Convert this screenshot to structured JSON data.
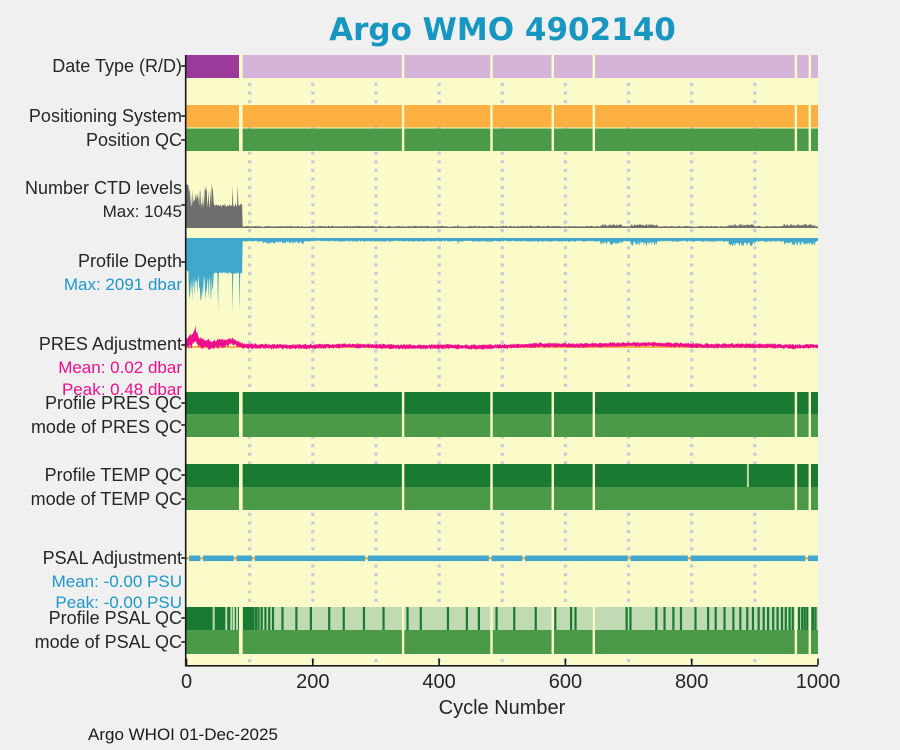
{
  "title": "Argo WMO 4902140",
  "footer": "Argo WHOI 01-Dec-2025",
  "chart_data": {
    "type": "multi-panel-status-timeline",
    "xaxis": {
      "label": "Cycle Number",
      "tick_values": [
        0,
        200,
        400,
        600,
        800,
        1000
      ],
      "min": 0,
      "max": 1000,
      "grid_every": 100
    },
    "colors": {
      "background": "#fbfbc9",
      "grid": "#c9ccd4",
      "axis": "#1a1a1a",
      "purple_dark": "#9b3a9b",
      "purple_light": "#d6b4d9",
      "orange": "#fbb041",
      "green_mid": "#4a9a48",
      "qc_dark": "#1b7a31",
      "psal_light": "#c0dbb4",
      "gray": "#6e6e6e",
      "blue": "#42a7cc",
      "magenta": "#ed0e8d",
      "zero_orange": "#f7a73f",
      "title": "#1796c0"
    },
    "panels": [
      {
        "id": "date_type",
        "label": "Date Type (R/D)",
        "type": "band",
        "segments": [
          {
            "from": 0,
            "to": 86,
            "color": "#9b3a9b"
          },
          {
            "from": 86,
            "to": 1000,
            "color": "#d6b4d9"
          }
        ],
        "gaps": [
          86,
          343,
          483,
          580,
          645,
          965,
          987
        ]
      },
      {
        "id": "positioning_system",
        "label": "Positioning System",
        "type": "band",
        "segments": [
          {
            "from": 0,
            "to": 1000,
            "color": "#fbb041"
          }
        ],
        "gaps": [
          86,
          343,
          483,
          580,
          645,
          965,
          987
        ]
      },
      {
        "id": "position_qc",
        "label": "Position QC",
        "type": "band",
        "segments": [
          {
            "from": 0,
            "to": 1000,
            "color": "#4a9a48"
          }
        ],
        "gaps": [
          86,
          343,
          483,
          580,
          645,
          965,
          987
        ]
      },
      {
        "id": "ctd_levels",
        "label": "Number CTD levels",
        "sublabels": {
          "max": "Max: 1045"
        },
        "type": "area",
        "orientation": "up",
        "ymax": 1045,
        "max_value": 1045,
        "color": "#6e6e6e",
        "seed": 11,
        "envelope": [
          {
            "from": 0,
            "to": 3,
            "min": 960,
            "max": 1045
          },
          {
            "from": 3,
            "to": 42,
            "min": 430,
            "max": 980
          },
          {
            "from": 42,
            "to": 88,
            "min": 480,
            "max": 560
          },
          {
            "from": 88,
            "to": 655,
            "min": 25,
            "max": 50
          },
          {
            "from": 655,
            "to": 690,
            "min": 40,
            "max": 90
          },
          {
            "from": 690,
            "to": 703,
            "min": 25,
            "max": 50
          },
          {
            "from": 703,
            "to": 745,
            "min": 40,
            "max": 95
          },
          {
            "from": 745,
            "to": 858,
            "min": 25,
            "max": 50
          },
          {
            "from": 858,
            "to": 900,
            "min": 40,
            "max": 100
          },
          {
            "from": 900,
            "to": 945,
            "min": 25,
            "max": 50
          },
          {
            "from": 945,
            "to": 995,
            "min": 40,
            "max": 100
          },
          {
            "from": 995,
            "to": 1000,
            "min": 25,
            "max": 50
          }
        ],
        "spikes": [
          {
            "c": 40,
            "v": 1000
          },
          {
            "c": 73,
            "v": 960
          },
          {
            "c": 81,
            "v": 990
          },
          {
            "c": 430,
            "v": 85
          },
          {
            "c": 545,
            "v": 70
          }
        ]
      },
      {
        "id": "profile_depth",
        "label": "Profile Depth",
        "sublabels": {
          "max": "Max: 2091 dbar"
        },
        "type": "area",
        "orientation": "down",
        "ymax": 2091,
        "max_value": 2091,
        "color": "#42a7cc",
        "seed": 23,
        "envelope": [
          {
            "from": 0,
            "to": 3,
            "min": 860,
            "max": 990
          },
          {
            "from": 3,
            "to": 42,
            "min": 980,
            "max": 1850
          },
          {
            "from": 42,
            "to": 88,
            "min": 950,
            "max": 1010
          },
          {
            "from": 88,
            "to": 120,
            "min": 70,
            "max": 110
          },
          {
            "from": 120,
            "to": 185,
            "min": 85,
            "max": 165
          },
          {
            "from": 185,
            "to": 655,
            "min": 70,
            "max": 110
          },
          {
            "from": 655,
            "to": 690,
            "min": 90,
            "max": 190
          },
          {
            "from": 690,
            "to": 703,
            "min": 70,
            "max": 110
          },
          {
            "from": 703,
            "to": 745,
            "min": 90,
            "max": 215
          },
          {
            "from": 745,
            "to": 858,
            "min": 70,
            "max": 110
          },
          {
            "from": 858,
            "to": 900,
            "min": 100,
            "max": 235
          },
          {
            "from": 900,
            "to": 945,
            "min": 70,
            "max": 110
          },
          {
            "from": 945,
            "to": 995,
            "min": 95,
            "max": 225
          },
          {
            "from": 995,
            "to": 1000,
            "min": 70,
            "max": 110
          }
        ],
        "spikes": [
          {
            "c": 50,
            "v": 2040
          },
          {
            "c": 73,
            "v": 2091
          },
          {
            "c": 84,
            "v": 2010
          },
          {
            "c": 430,
            "v": 190
          }
        ]
      },
      {
        "id": "pres_adjustment",
        "label": "PRES Adjustment",
        "sublabels": {
          "mean": "Mean: 0.02 dbar",
          "peak": "Peak: 0.48 dbar"
        },
        "mean_value": 0.02,
        "peak_value_stat": 0.48,
        "units": "dbar",
        "type": "noisy_line",
        "color": "#ed0e8d",
        "zero_line": true,
        "seed": 37,
        "center_points": [
          [
            0,
            0.1
          ],
          [
            8,
            0.14
          ],
          [
            12,
            0.26
          ],
          [
            14,
            0.3
          ],
          [
            16,
            0.24
          ],
          [
            20,
            0.1
          ],
          [
            40,
            0.06
          ],
          [
            60,
            0.08
          ],
          [
            72,
            0.13
          ],
          [
            90,
            0.02
          ],
          [
            140,
            0.01
          ],
          [
            200,
            0.01
          ],
          [
            260,
            0.03
          ],
          [
            300,
            0.02
          ],
          [
            360,
            0.0
          ],
          [
            420,
            0.01
          ],
          [
            470,
            0.0
          ],
          [
            520,
            0.02
          ],
          [
            560,
            0.04
          ],
          [
            620,
            0.03
          ],
          [
            680,
            0.05
          ],
          [
            730,
            0.06
          ],
          [
            780,
            0.04
          ],
          [
            830,
            0.02
          ],
          [
            880,
            0.03
          ],
          [
            930,
            0.02
          ],
          [
            970,
            0.01
          ],
          [
            1000,
            0.02
          ]
        ],
        "amp_points": [
          [
            0,
            0.2
          ],
          [
            14,
            0.18
          ],
          [
            30,
            0.13
          ],
          [
            60,
            0.11
          ],
          [
            90,
            0.07
          ],
          [
            150,
            0.06
          ],
          [
            1000,
            0.06
          ]
        ],
        "peak_cycle": 14,
        "peak_value": 0.48
      },
      {
        "id": "profile_pres_qc",
        "label": "Profile PRES QC",
        "type": "band",
        "segments": [
          {
            "from": 0,
            "to": 1000,
            "color": "#1b7a31"
          }
        ],
        "gaps": [
          86,
          343,
          483,
          580,
          645,
          965,
          987
        ]
      },
      {
        "id": "mode_pres_qc",
        "label": "mode of PRES QC",
        "type": "band",
        "segments": [
          {
            "from": 0,
            "to": 1000,
            "color": "#4a9a48"
          }
        ],
        "gaps": [
          86,
          343,
          483,
          580,
          645,
          965,
          987
        ]
      },
      {
        "id": "profile_temp_qc",
        "label": "Profile TEMP QC",
        "type": "band",
        "segments": [
          {
            "from": 0,
            "to": 1000,
            "color": "#1b7a31"
          }
        ],
        "light_stripes": [
          889
        ],
        "light_stripe_color": "#b9d8b0",
        "gaps": [
          86,
          343,
          483,
          580,
          645,
          965,
          987
        ]
      },
      {
        "id": "mode_temp_qc",
        "label": "mode of TEMP QC",
        "type": "band",
        "segments": [
          {
            "from": 0,
            "to": 1000,
            "color": "#4a9a48"
          }
        ],
        "gaps": [
          86,
          343,
          483,
          580,
          645,
          965,
          987
        ]
      },
      {
        "id": "psal_adjustment",
        "label": "PSAL Adjustment",
        "sublabels": {
          "mean": "Mean: -0.00 PSU",
          "peak": "Peak: -0.00 PSU"
        },
        "mean_value": -0.0,
        "peak_value_stat": -0.0,
        "units": "PSU",
        "type": "thick_line",
        "color": "#42a7cc",
        "zero_line": true,
        "line_gaps": [
          2,
          24,
          77,
          106,
          285,
          481,
          534,
          701,
          796,
          982
        ]
      },
      {
        "id": "profile_psal_qc",
        "label": "Profile PSAL QC",
        "type": "band",
        "segments": [
          {
            "from": 0,
            "to": 86,
            "color": "#1b7a31"
          },
          {
            "from": 86,
            "to": 1000,
            "color": "#c0dbb4"
          }
        ],
        "light_stripes": [
          43,
          63,
          71,
          75,
          80
        ],
        "light_stripe_color": "#c0dbb4",
        "dark_stripes": [
          91,
          94,
          97,
          100,
          103,
          106,
          110,
          114,
          119,
          125,
          131,
          137,
          152,
          174,
          197,
          226,
          249,
          281,
          312,
          350,
          371,
          414,
          444,
          463,
          491,
          519,
          553,
          584,
          609,
          616,
          645,
          697,
          703,
          744,
          757,
          771,
          783,
          806,
          826,
          838,
          852,
          866,
          877,
          888,
          897,
          906,
          914,
          921,
          929,
          936,
          943,
          949,
          955,
          960,
          965,
          970,
          975,
          979,
          983,
          988,
          992,
          996
        ],
        "gaps": [
          86,
          343,
          483,
          580,
          645,
          965,
          987
        ]
      },
      {
        "id": "mode_psal_qc",
        "label": "mode of PSAL QC",
        "type": "band",
        "segments": [
          {
            "from": 0,
            "to": 1000,
            "color": "#4a9a48"
          }
        ],
        "gaps": [
          86,
          343,
          483,
          580,
          645,
          965,
          987
        ]
      }
    ]
  }
}
